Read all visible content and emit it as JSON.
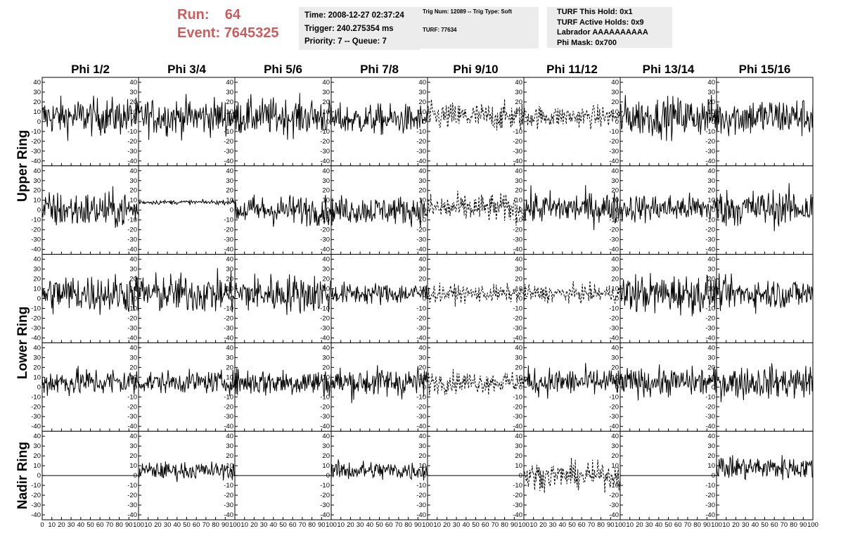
{
  "header": {
    "run_label": "Run:",
    "run_value": "64",
    "event_label": "Event:",
    "event_value": "7645325",
    "time_line": "Time: 2008-12-27 02:37:24",
    "trigger_line": "Trigger: 240.275354 ms",
    "priority_line": "Priority: 7 -- Queue: 7",
    "trig_line": "Trig Num: 12089 -- Trig Type: Soft",
    "turf_line": "TURF: 77634",
    "turf_hold_line": "TURF This Hold: 0x1",
    "turf_active_line": "TURF Active Holds: 0x9",
    "labrador_line": "Labrador AAAAAAAAAA",
    "phi_mask_line": "Phi Mask: 0x700"
  },
  "chart_data": {
    "type": "line",
    "columns": [
      "Phi 1/2",
      "Phi 3/4",
      "Phi 5/6",
      "Phi 7/8",
      "Phi 9/10",
      "Phi 11/12",
      "Phi 13/14",
      "Phi 15/16"
    ],
    "rows": [
      "Upper Ring",
      "Lower Ring",
      "Nadir Ring"
    ],
    "row_panels": [
      {
        "ring": "Upper Ring"
      },
      {
        "ring": "Upper Ring"
      },
      {
        "ring": "Lower Ring"
      },
      {
        "ring": "Lower Ring"
      },
      {
        "ring": "Nadir Ring"
      }
    ],
    "xlim": [
      0,
      100
    ],
    "ylim": [
      -45,
      45
    ],
    "x_ticks": [
      0,
      10,
      20,
      30,
      40,
      50,
      60,
      70,
      80,
      90,
      100
    ],
    "y_ticks": [
      -40,
      -30,
      -20,
      -10,
      0,
      10,
      20,
      30,
      40
    ],
    "panels": [
      [
        {
          "center": 5,
          "amp": 17,
          "dashed": false
        },
        {
          "center": 5,
          "amp": 17,
          "dashed": false
        },
        {
          "center": 5,
          "amp": 17,
          "dashed": false
        },
        {
          "center": 2,
          "amp": 14,
          "dashed": false
        },
        {
          "center": 5,
          "amp": 13,
          "dashed": true
        },
        {
          "center": 5,
          "amp": 10,
          "dashed": true
        },
        {
          "center": 5,
          "amp": 18,
          "dashed": false
        },
        {
          "center": 5,
          "amp": 18,
          "dashed": false
        }
      ],
      [
        {
          "center": 0,
          "amp": 17,
          "dashed": false
        },
        {
          "center": 8,
          "amp": 2,
          "dashed": false
        },
        {
          "center": 0,
          "amp": 14,
          "dashed": false
        },
        {
          "center": 0,
          "amp": 13,
          "dashed": false
        },
        {
          "center": 2,
          "amp": 13,
          "dashed": true
        },
        {
          "center": 2,
          "amp": 15,
          "dashed": false
        },
        {
          "center": 2,
          "amp": 13,
          "dashed": false
        },
        {
          "center": 2,
          "amp": 17,
          "dashed": false
        }
      ],
      [
        {
          "center": 5,
          "amp": 18,
          "dashed": false
        },
        {
          "center": 5,
          "amp": 18,
          "dashed": false
        },
        {
          "center": 5,
          "amp": 18,
          "dashed": false
        },
        {
          "center": 5,
          "amp": 10,
          "dashed": false
        },
        {
          "center": 5,
          "amp": 8,
          "dashed": true
        },
        {
          "center": 5,
          "amp": 8,
          "dashed": true
        },
        {
          "center": 5,
          "amp": 18,
          "dashed": false
        },
        {
          "center": 5,
          "amp": 14,
          "dashed": false
        }
      ],
      [
        {
          "center": 5,
          "amp": 13,
          "dashed": false
        },
        {
          "center": 5,
          "amp": 10,
          "dashed": false
        },
        {
          "center": 5,
          "amp": 13,
          "dashed": false
        },
        {
          "center": 5,
          "amp": 14,
          "dashed": false
        },
        {
          "center": 5,
          "amp": 10,
          "dashed": true
        },
        {
          "center": 5,
          "amp": 13,
          "dashed": false
        },
        {
          "center": 5,
          "amp": 13,
          "dashed": false
        },
        {
          "center": 5,
          "amp": 15,
          "dashed": false
        }
      ],
      [
        {
          "center": 0,
          "amp": 0,
          "dashed": false
        },
        {
          "center": 5,
          "amp": 8,
          "dashed": false
        },
        {
          "center": 0,
          "amp": 0,
          "dashed": false
        },
        {
          "center": 5,
          "amp": 9,
          "dashed": false
        },
        {
          "center": 0,
          "amp": 0,
          "dashed": false
        },
        {
          "center": 0,
          "amp": 12,
          "dashed": true
        },
        {
          "center": 0,
          "amp": 0,
          "dashed": false
        },
        {
          "center": 8,
          "amp": 11,
          "dashed": false
        }
      ]
    ]
  }
}
